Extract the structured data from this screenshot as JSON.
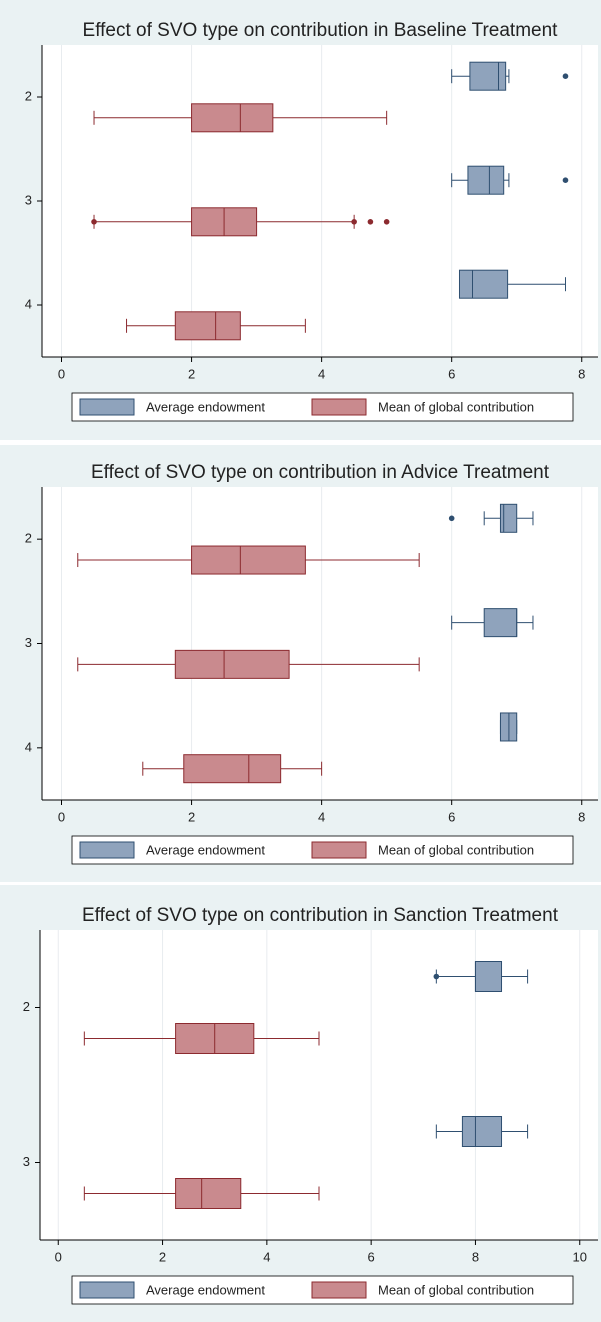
{
  "chart_data": [
    {
      "type": "box",
      "title": "Effect of SVO type on contribution in Baseline Treatment",
      "categories": [
        "2",
        "3",
        "4"
      ],
      "xlim": [
        -0.3,
        8.25
      ],
      "xticks": [
        0,
        2,
        4,
        6,
        8
      ],
      "grid": true,
      "legend": "bottom",
      "series": [
        {
          "name": "Average endowment",
          "color": "#8fa3bc",
          "stroke": "#2f4f70",
          "values": [
            {
              "min": 6,
              "q1": 6.28,
              "median": 6.72,
              "q3": 6.83,
              "max": 6.88,
              "outliers": [
                7.75
              ]
            },
            {
              "min": 6,
              "q1": 6.25,
              "median": 6.58,
              "q3": 6.8,
              "max": 6.88,
              "outliers": [
                7.75
              ]
            },
            {
              "min": 6.12,
              "q1": 6.12,
              "median": 6.32,
              "q3": 6.86,
              "max": 7.75,
              "outliers": []
            }
          ]
        },
        {
          "name": "Mean of global contribution",
          "color": "#c98a8e",
          "stroke": "#8c2a2f",
          "values": [
            {
              "min": 0.5,
              "q1": 2,
              "median": 2.75,
              "q3": 3.25,
              "max": 5,
              "outliers": []
            },
            {
              "min": 0.5,
              "q1": 2,
              "median": 2.5,
              "q3": 3,
              "max": 4.5,
              "outliers": [
                0.5,
                4.5,
                4.75,
                5
              ]
            },
            {
              "min": 1,
              "q1": 1.75,
              "median": 2.37,
              "q3": 2.75,
              "max": 3.75,
              "outliers": []
            }
          ]
        }
      ]
    },
    {
      "type": "box",
      "title": "Effect of SVO type on contribution in Advice Treatment",
      "categories": [
        "2",
        "3",
        "4"
      ],
      "xlim": [
        -0.3,
        8.25
      ],
      "xticks": [
        0,
        2,
        4,
        6,
        8
      ],
      "grid": true,
      "legend": "bottom",
      "series": [
        {
          "name": "Average endowment",
          "color": "#8fa3bc",
          "stroke": "#2f4f70",
          "values": [
            {
              "min": 6.5,
              "q1": 6.75,
              "median": 6.8,
              "q3": 7,
              "max": 7.25,
              "outliers": [
                6
              ]
            },
            {
              "min": 6,
              "q1": 6.5,
              "median": 7,
              "q3": 7,
              "max": 7.25,
              "outliers": []
            },
            {
              "min": 6.75,
              "q1": 6.75,
              "median": 6.88,
              "q3": 7,
              "max": 7,
              "outliers": []
            }
          ]
        },
        {
          "name": "Mean of global contribution",
          "color": "#c98a8e",
          "stroke": "#8c2a2f",
          "values": [
            {
              "min": 0.25,
              "q1": 2,
              "median": 2.75,
              "q3": 3.75,
              "max": 5.5,
              "outliers": []
            },
            {
              "min": 0.25,
              "q1": 1.75,
              "median": 2.5,
              "q3": 3.5,
              "max": 5.5,
              "outliers": []
            },
            {
              "min": 1.25,
              "q1": 1.88,
              "median": 2.88,
              "q3": 3.37,
              "max": 4,
              "outliers": []
            }
          ]
        }
      ]
    },
    {
      "type": "box",
      "title": "Effect of SVO type on contribution in Sanction Treatment",
      "categories": [
        "2",
        "3"
      ],
      "xlim": [
        -0.35,
        10.35
      ],
      "xticks": [
        0,
        2,
        4,
        6,
        8,
        10
      ],
      "grid": true,
      "legend": "bottom",
      "series": [
        {
          "name": "Average endowment",
          "color": "#8fa3bc",
          "stroke": "#2f4f70",
          "values": [
            {
              "min": 7.25,
              "q1": 8,
              "median": 8,
              "q3": 8.5,
              "max": 9,
              "outliers": [
                7.25
              ]
            },
            {
              "min": 7.25,
              "q1": 7.75,
              "median": 8,
              "q3": 8.5,
              "max": 9,
              "outliers": []
            }
          ]
        },
        {
          "name": "Mean of global contribution",
          "color": "#c98a8e",
          "stroke": "#8c2a2f",
          "values": [
            {
              "min": 0.5,
              "q1": 2.25,
              "median": 3,
              "q3": 3.75,
              "max": 5,
              "outliers": []
            },
            {
              "min": 0.5,
              "q1": 2.25,
              "median": 2.75,
              "q3": 3.5,
              "max": 5,
              "outliers": []
            }
          ]
        }
      ]
    }
  ]
}
